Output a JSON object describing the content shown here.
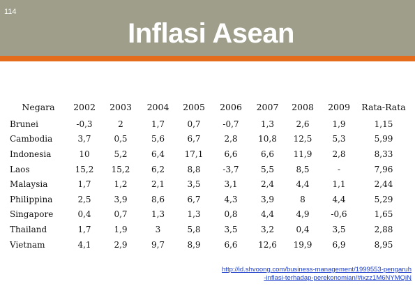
{
  "page_number": "114",
  "title": "Inflasi Asean",
  "table": {
    "headers": [
      "Negara",
      "2002",
      "2003",
      "2004",
      "2005",
      "2006",
      "2007",
      "2008",
      "2009",
      "Rata-Rata"
    ],
    "rows": [
      [
        "Brunei",
        "-0,3",
        "2",
        "1,7",
        "0,7",
        "-0,7",
        "1,3",
        "2,6",
        "1,9",
        "1,15"
      ],
      [
        "Cambodia",
        "3,7",
        "0,5",
        "5,6",
        "6,7",
        "2,8",
        "10,8",
        "12,5",
        "5,3",
        "5,99"
      ],
      [
        "Indonesia",
        "10",
        "5,2",
        "6,4",
        "17,1",
        "6,6",
        "6,6",
        "11,9",
        "2,8",
        "8,33"
      ],
      [
        "Laos",
        "15,2",
        "15,2",
        "6,2",
        "8,8",
        "-3,7",
        "5,5",
        "8,5",
        "-",
        "7,96"
      ],
      [
        "Malaysia",
        "1,7",
        "1,2",
        "2,1",
        "3,5",
        "3,1",
        "2,4",
        "4,4",
        "1,1",
        "2,44"
      ],
      [
        "Philippina",
        "2,5",
        "3,9",
        "8,6",
        "6,7",
        "4,3",
        "3,9",
        "8",
        "4,4",
        "5,29"
      ],
      [
        "Singapore",
        "0,4",
        "0,7",
        "1,3",
        "1,3",
        "0,8",
        "4,4",
        "4,9",
        "-0,6",
        "1,65"
      ],
      [
        "Thailand",
        "1,7",
        "1,9",
        "3",
        "5,8",
        "3,5",
        "3,2",
        "0,4",
        "3,5",
        "2,88"
      ],
      [
        "Vietnam",
        "4,1",
        "2,9",
        "9,7",
        "8,9",
        "6,6",
        "12,6",
        "19,9",
        "6,9",
        "8,95"
      ]
    ]
  },
  "source": {
    "line1": "http://id.shvoong.com/business-management/1999553-pengaruh",
    "line2": "-inflasi-terhadap-perekonomian/#ixzz1M6NYMQiN"
  },
  "colors": {
    "header_bg": "#9e9e8a",
    "accent_bar": "#e46c1a",
    "link": "#1a3cc8"
  }
}
